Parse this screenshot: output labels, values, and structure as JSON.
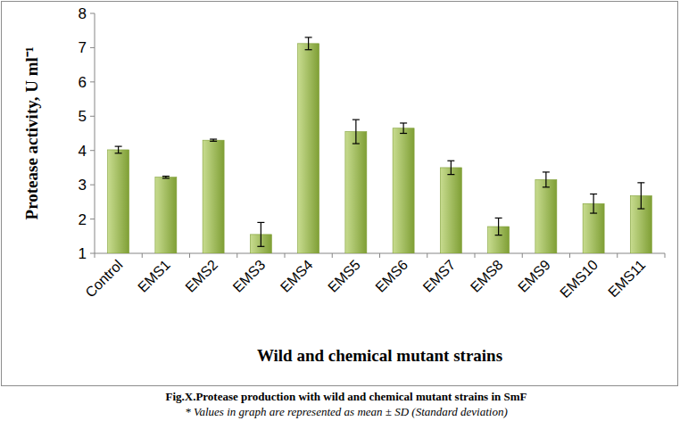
{
  "chart_data": {
    "type": "bar",
    "title": "Fig.X.Protease production with wild and chemical mutant strains in SmF",
    "subtitle": "* Values in graph are represented as mean ± SD (Standard deviation)",
    "x_label": "Wild and chemical mutant strains",
    "y_label": "Protease activity, U ml⁻¹",
    "categories": [
      "Control",
      "EMS1",
      "EMS2",
      "EMS3",
      "EMS4",
      "EMS5",
      "EMS6",
      "EMS7",
      "EMS8",
      "EMS9",
      "EMS10",
      "EMS11"
    ],
    "values": [
      4.02,
      3.22,
      4.3,
      1.55,
      7.12,
      4.55,
      4.65,
      3.5,
      1.78,
      3.15,
      2.45,
      2.68
    ],
    "errors": [
      0.1,
      0.03,
      0.03,
      0.35,
      0.18,
      0.35,
      0.15,
      0.2,
      0.25,
      0.22,
      0.28,
      0.38
    ],
    "color": "#9bbb59",
    "ylim": [
      1,
      8
    ],
    "yticks": [
      1,
      2,
      3,
      4,
      5,
      6,
      7,
      8
    ],
    "grid": false
  }
}
